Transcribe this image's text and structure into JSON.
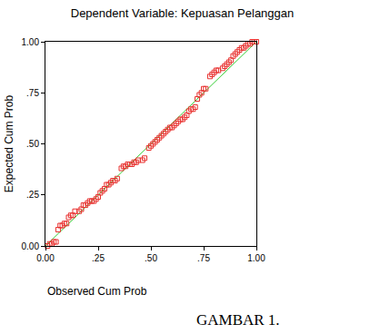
{
  "chart_data": {
    "type": "scatter",
    "title": "Dependent Variable: Kepuasan Pelanggan",
    "x_label": "Observed Cum Prob",
    "y_label": "Expected Cum Prob",
    "caption": "GAMBAR 1.",
    "xlim": [
      0,
      1
    ],
    "ylim": [
      0,
      1
    ],
    "xticks": [
      {
        "value": 0,
        "label": "0.00"
      },
      {
        "value": 0.25,
        "label": ".25"
      },
      {
        "value": 0.5,
        "label": ".50"
      },
      {
        "value": 0.75,
        "label": ".75"
      },
      {
        "value": 1,
        "label": "1.00"
      }
    ],
    "yticks": [
      {
        "value": 0,
        "label": "0.00"
      },
      {
        "value": 0.25,
        "label": ".25"
      },
      {
        "value": 0.5,
        "label": ".50"
      },
      {
        "value": 0.75,
        "label": ".75"
      },
      {
        "value": 1,
        "label": "1.00"
      }
    ],
    "grid": false,
    "series": [
      {
        "type": "line",
        "color": "#33cc33",
        "line_style": "solid",
        "x": [
          0,
          1
        ],
        "values": [
          0,
          1
        ]
      },
      {
        "type": "scatter",
        "color": "#e8312f",
        "marker": "square-open",
        "x": [
          0.01,
          0.02,
          0.03,
          0.04,
          0.05,
          0.06,
          0.07,
          0.08,
          0.09,
          0.1,
          0.11,
          0.12,
          0.13,
          0.14,
          0.16,
          0.17,
          0.18,
          0.19,
          0.2,
          0.21,
          0.22,
          0.23,
          0.24,
          0.25,
          0.26,
          0.27,
          0.28,
          0.29,
          0.3,
          0.31,
          0.32,
          0.33,
          0.34,
          0.36,
          0.37,
          0.38,
          0.39,
          0.4,
          0.41,
          0.42,
          0.43,
          0.44,
          0.46,
          0.47,
          0.49,
          0.5,
          0.51,
          0.52,
          0.53,
          0.54,
          0.55,
          0.56,
          0.57,
          0.58,
          0.59,
          0.6,
          0.61,
          0.62,
          0.63,
          0.64,
          0.65,
          0.66,
          0.67,
          0.68,
          0.69,
          0.7,
          0.71,
          0.72,
          0.73,
          0.74,
          0.75,
          0.76,
          0.78,
          0.79,
          0.8,
          0.81,
          0.82,
          0.84,
          0.85,
          0.86,
          0.87,
          0.88,
          0.89,
          0.9,
          0.91,
          0.92,
          0.93,
          0.94,
          0.95,
          0.96,
          0.97,
          0.98,
          0.99,
          1.0
        ],
        "values": [
          0.0,
          0.01,
          0.01,
          0.02,
          0.02,
          0.08,
          0.1,
          0.1,
          0.11,
          0.11,
          0.14,
          0.15,
          0.15,
          0.17,
          0.17,
          0.18,
          0.2,
          0.2,
          0.21,
          0.22,
          0.22,
          0.22,
          0.23,
          0.24,
          0.26,
          0.27,
          0.28,
          0.3,
          0.3,
          0.31,
          0.32,
          0.32,
          0.33,
          0.38,
          0.39,
          0.39,
          0.4,
          0.4,
          0.4,
          0.41,
          0.41,
          0.42,
          0.42,
          0.43,
          0.48,
          0.49,
          0.5,
          0.51,
          0.52,
          0.53,
          0.54,
          0.55,
          0.56,
          0.57,
          0.58,
          0.58,
          0.59,
          0.6,
          0.61,
          0.62,
          0.62,
          0.63,
          0.64,
          0.66,
          0.67,
          0.67,
          0.68,
          0.72,
          0.74,
          0.75,
          0.77,
          0.77,
          0.83,
          0.84,
          0.85,
          0.86,
          0.86,
          0.87,
          0.88,
          0.89,
          0.9,
          0.91,
          0.93,
          0.94,
          0.95,
          0.96,
          0.97,
          0.97,
          0.98,
          0.99,
          0.99,
          1.0,
          1.0,
          1.0
        ]
      }
    ]
  }
}
